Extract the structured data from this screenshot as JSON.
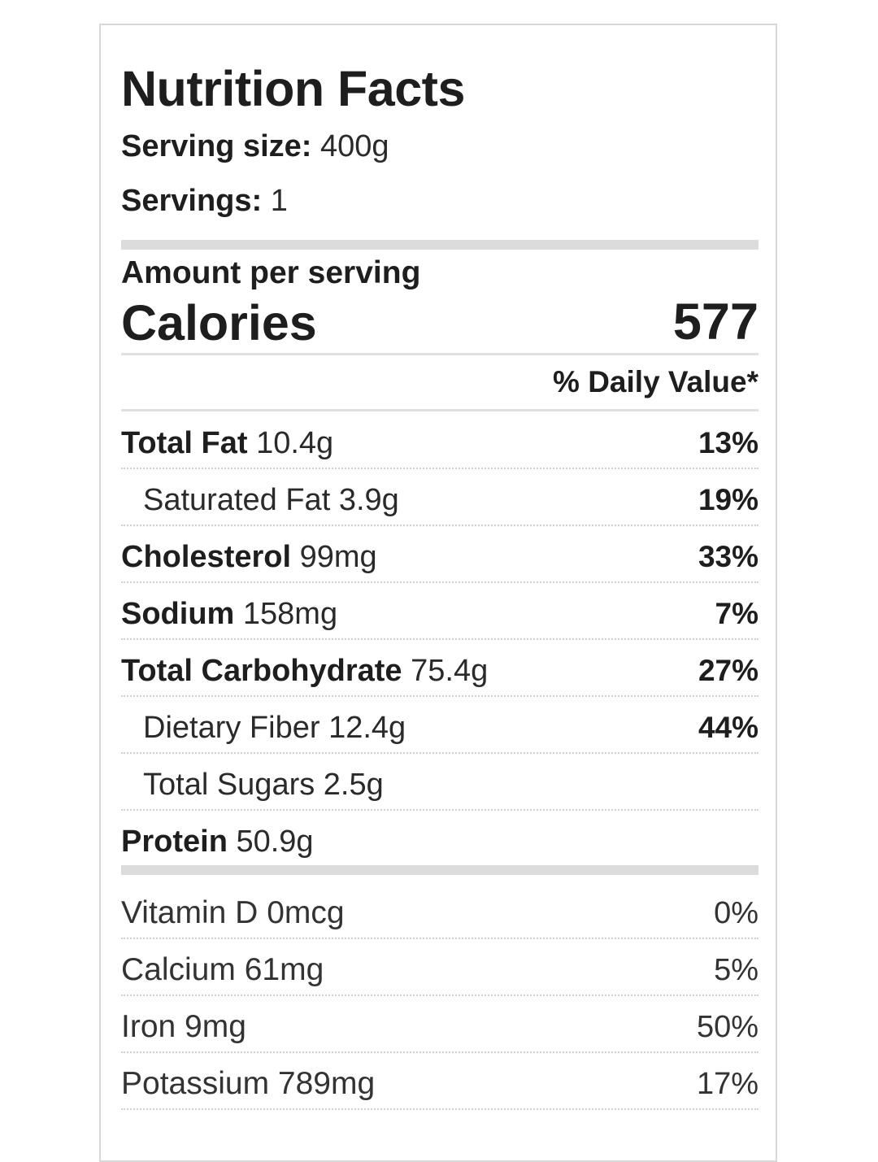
{
  "header": {
    "title": "Nutrition Facts",
    "serving_size_label": "Serving size:",
    "serving_size_value": "400g",
    "servings_label": "Servings:",
    "servings_value": "1"
  },
  "calories": {
    "amount_label": "Amount per serving",
    "label": "Calories",
    "value": "577"
  },
  "daily_value_header": "% Daily Value*",
  "nutrients": [
    {
      "name": "Total Fat",
      "amount": "10.4g",
      "dv": "13%"
    },
    {
      "name": "Saturated Fat",
      "amount": "3.9g",
      "dv": "19%"
    },
    {
      "name": "Cholesterol",
      "amount": "99mg",
      "dv": "33%"
    },
    {
      "name": "Sodium",
      "amount": "158mg",
      "dv": "7%"
    },
    {
      "name": "Total Carbohydrate",
      "amount": "75.4g",
      "dv": "27%"
    },
    {
      "name": "Dietary Fiber",
      "amount": "12.4g",
      "dv": "44%"
    },
    {
      "name": "Total Sugars",
      "amount": "2.5g",
      "dv": ""
    },
    {
      "name": "Protein",
      "amount": "50.9g",
      "dv": ""
    }
  ],
  "vitamins": [
    {
      "name": "Vitamin D",
      "amount": "0mcg",
      "dv": "0%"
    },
    {
      "name": "Calcium",
      "amount": "61mg",
      "dv": "5%"
    },
    {
      "name": "Iron",
      "amount": "9mg",
      "dv": "50%"
    },
    {
      "name": "Potassium",
      "amount": "789mg",
      "dv": "17%"
    }
  ]
}
